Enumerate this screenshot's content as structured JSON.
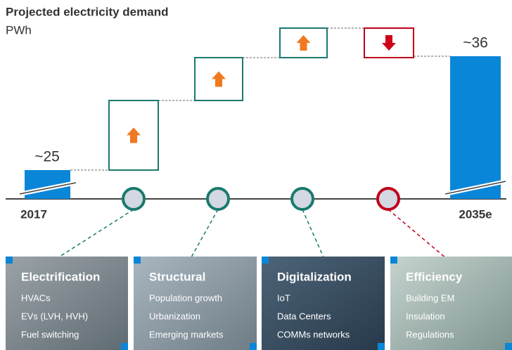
{
  "title": "Projected electricity demand",
  "unit": "PWh",
  "start": {
    "label": "2017",
    "value_label": "~25"
  },
  "end": {
    "label": "2035e",
    "value_label": "~36"
  },
  "drivers": [
    {
      "name": "Electrification",
      "direction": "up",
      "items": [
        "HVACs",
        "EVs (LVH, HVH)",
        "Fuel switching"
      ]
    },
    {
      "name": "Structural",
      "direction": "up",
      "items": [
        "Population growth",
        "Urbanization",
        "Emerging markets"
      ]
    },
    {
      "name": "Digitalization",
      "direction": "up",
      "items": [
        "IoT",
        "Data Centers",
        "COMMs networks"
      ]
    },
    {
      "name": "Efficiency",
      "direction": "down",
      "items": [
        "Building EM",
        "Insulation",
        "Regulations"
      ]
    }
  ]
}
